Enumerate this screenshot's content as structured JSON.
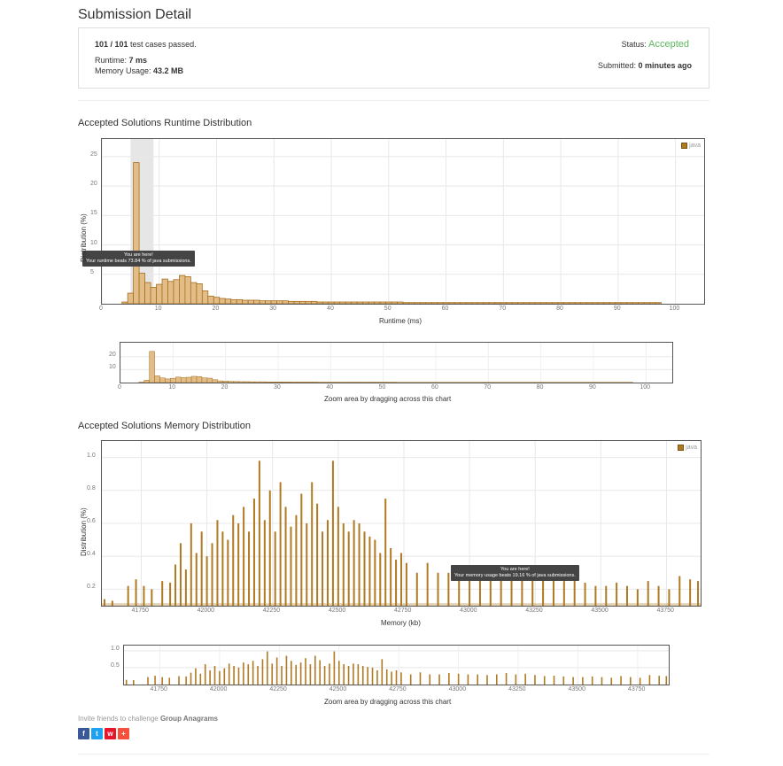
{
  "page": {
    "title": "Submission Detail"
  },
  "summary": {
    "cases_passed": "101 / 101",
    "cases_suffix": " test cases passed.",
    "runtime_label": "Runtime: ",
    "runtime_value": "7 ms",
    "memory_label": "Memory Usage: ",
    "memory_value": "43.2 MB",
    "status_label": "Status: ",
    "status_value": "Accepted",
    "submitted_label": "Submitted: ",
    "submitted_value": "0 minutes ago"
  },
  "runtime_section": {
    "title": "Accepted Solutions Runtime Distribution"
  },
  "memory_section": {
    "title": "Accepted Solutions Memory Distribution"
  },
  "runtime_tooltip": {
    "line1": "You are here!",
    "line2": "Your runtime beats 73.84 % of java submissions."
  },
  "memory_tooltip": {
    "line1": "You are here!",
    "line2": "Your memory usage beats 19.16 % of java submissions."
  },
  "zoom_caption": "Zoom area by dragging across this chart",
  "legend_label": "java",
  "invite": {
    "prefix": "Invite friends to challenge ",
    "problem": "Group Anagrams"
  },
  "colors": {
    "bar_fill_runtime": "#e2bd88",
    "bar_stroke": "#a66f1e",
    "bar_memory": "#b07a22",
    "accepted": "#5cb85c",
    "highlight_band": "#e6e6e6"
  },
  "share_icons": [
    "facebook-icon",
    "twitter-icon",
    "weibo-icon",
    "plus-icon"
  ],
  "chart_data": [
    {
      "type": "bar",
      "title": "Accepted Solutions Runtime Distribution",
      "xlabel": "Runtime (ms)",
      "ylabel": "Distribution (%)",
      "xlim": [
        0,
        105
      ],
      "ylim": [
        0,
        28
      ],
      "xticks": [
        0,
        10,
        20,
        30,
        40,
        50,
        60,
        70,
        80,
        90,
        100
      ],
      "yticks": [
        5,
        10,
        15,
        20,
        25
      ],
      "legend": "java",
      "highlight_x": [
        5,
        9
      ],
      "x": [
        4,
        5,
        6,
        7,
        8,
        9,
        10,
        11,
        12,
        13,
        14,
        15,
        16,
        17,
        18,
        19,
        20,
        21,
        22,
        23,
        24,
        25,
        26,
        27,
        28,
        29,
        30,
        31,
        32,
        33,
        34,
        35,
        36,
        37,
        38,
        39,
        40,
        41,
        42,
        43,
        44,
        45,
        46,
        47,
        48,
        49,
        50,
        51,
        52,
        53,
        54,
        55,
        56,
        57,
        58,
        59,
        60,
        61,
        62,
        63,
        64,
        65,
        66,
        67,
        68,
        69,
        70,
        71,
        72,
        73,
        74,
        75,
        76,
        77,
        78,
        79,
        80,
        81,
        82,
        83,
        84,
        85,
        86,
        87,
        88,
        89,
        90,
        91,
        92,
        93,
        94,
        95,
        96,
        97
      ],
      "values": [
        0.3,
        1.8,
        24,
        5.2,
        3.6,
        2.8,
        3.3,
        4.2,
        3.8,
        4.1,
        4.8,
        4.6,
        3.6,
        3.4,
        2.2,
        1.3,
        1.1,
        0.9,
        0.8,
        0.7,
        0.7,
        0.6,
        0.6,
        0.6,
        0.5,
        0.5,
        0.5,
        0.5,
        0.5,
        0.4,
        0.4,
        0.4,
        0.4,
        0.4,
        0.3,
        0.3,
        0.3,
        0.3,
        0.3,
        0.3,
        0.3,
        0.3,
        0.3,
        0.3,
        0.3,
        0.3,
        0.3,
        0.3,
        0.3,
        0.2,
        0.2,
        0.2,
        0.2,
        0.2,
        0.2,
        0.2,
        0.2,
        0.2,
        0.2,
        0.2,
        0.2,
        0.2,
        0.2,
        0.2,
        0.2,
        0.2,
        0.2,
        0.2,
        0.2,
        0.2,
        0.2,
        0.2,
        0.2,
        0.2,
        0.2,
        0.2,
        0.2,
        0.2,
        0.2,
        0.2,
        0.2,
        0.2,
        0.2,
        0.2,
        0.2,
        0.2,
        0.2,
        0.2,
        0.2,
        0.2,
        0.2,
        0.2,
        0.2,
        0.2
      ]
    },
    {
      "type": "bar",
      "title": "Accepted Solutions Memory Distribution",
      "xlabel": "Memory (kb)",
      "ylabel": "Distribution (%)",
      "xlim": [
        41600,
        43880
      ],
      "ylim": [
        0.1,
        1.1
      ],
      "xticks": [
        41750,
        42000,
        42250,
        42500,
        42750,
        43000,
        43250,
        43500,
        43750
      ],
      "yticks": [
        0.2,
        0.4,
        0.6,
        0.8,
        1.0
      ],
      "legend": "java",
      "x": [
        41610,
        41640,
        41700,
        41730,
        41760,
        41790,
        41830,
        41860,
        41880,
        41900,
        41920,
        41940,
        41960,
        41980,
        42000,
        42020,
        42040,
        42060,
        42080,
        42100,
        42120,
        42140,
        42160,
        42180,
        42200,
        42220,
        42240,
        42260,
        42280,
        42300,
        42320,
        42340,
        42360,
        42380,
        42400,
        42420,
        42440,
        42460,
        42480,
        42500,
        42520,
        42540,
        42560,
        42580,
        42600,
        42620,
        42640,
        42660,
        42680,
        42700,
        42720,
        42740,
        42760,
        42800,
        42840,
        42880,
        42920,
        42960,
        43000,
        43040,
        43080,
        43120,
        43160,
        43200,
        43240,
        43280,
        43320,
        43360,
        43400,
        43440,
        43480,
        43520,
        43560,
        43600,
        43640,
        43680,
        43720,
        43760,
        43800,
        43840,
        43870
      ],
      "values": [
        0.14,
        0.13,
        0.22,
        0.26,
        0.22,
        0.2,
        0.25,
        0.24,
        0.35,
        0.48,
        0.32,
        0.6,
        0.42,
        0.55,
        0.4,
        0.48,
        0.62,
        0.55,
        0.5,
        0.65,
        0.6,
        0.7,
        0.55,
        0.75,
        0.98,
        0.62,
        0.8,
        0.55,
        0.85,
        0.7,
        0.58,
        0.65,
        0.78,
        0.6,
        0.85,
        0.72,
        0.55,
        0.62,
        0.98,
        0.7,
        0.6,
        0.55,
        0.62,
        0.6,
        0.55,
        0.52,
        0.5,
        0.42,
        0.75,
        0.45,
        0.38,
        0.42,
        0.36,
        0.3,
        0.36,
        0.3,
        0.3,
        0.34,
        0.32,
        0.3,
        0.3,
        0.28,
        0.3,
        0.34,
        0.3,
        0.32,
        0.28,
        0.25,
        0.26,
        0.24,
        0.22,
        0.22,
        0.24,
        0.22,
        0.2,
        0.25,
        0.22,
        0.2,
        0.28,
        0.26,
        0.25
      ]
    }
  ]
}
